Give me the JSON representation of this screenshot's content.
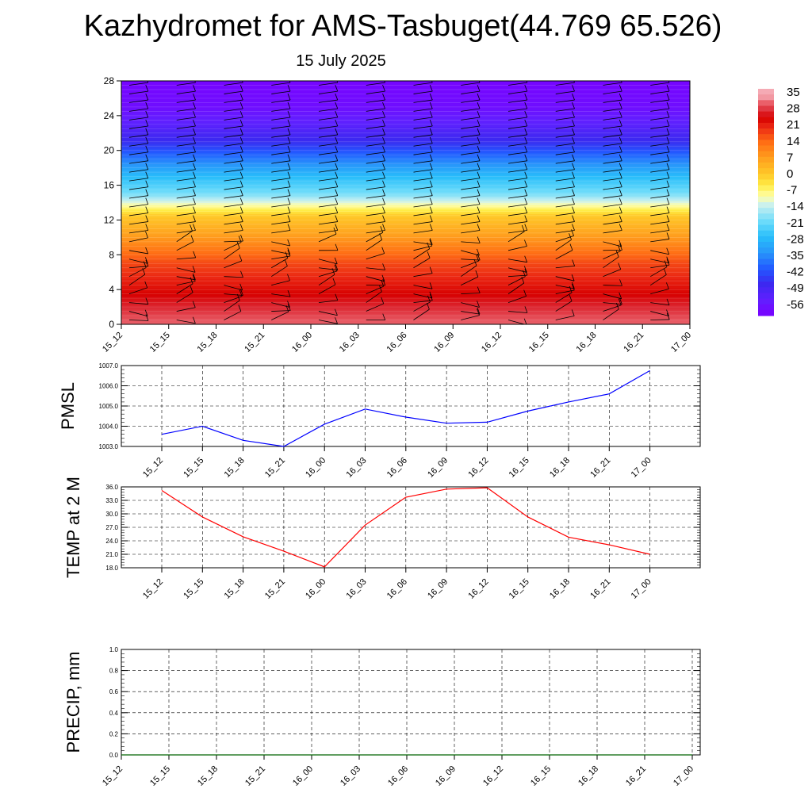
{
  "header": {
    "title": "Kazhydromet for AMS-Tasbuget(44.769 65.526)",
    "date": "15 July 2025"
  },
  "colors": {
    "pmsl_line": "#0000ff",
    "temp_line": "#ff0000",
    "precip_line": "#006400"
  },
  "chart_data": [
    {
      "type": "heatmap",
      "time_labels": [
        "15_12",
        "15_15",
        "15_18",
        "15_21",
        "16_00",
        "16_03",
        "16_06",
        "16_09",
        "16_12",
        "16_15",
        "16_18",
        "16_21",
        "17_00"
      ],
      "y_ticks": [
        0,
        4,
        8,
        12,
        16,
        20,
        24,
        28
      ],
      "ylim": [
        0,
        28
      ],
      "colorbar_labels": [
        "35",
        "28",
        "21",
        "14",
        "7",
        "0",
        "-7",
        "-14",
        "-21",
        "-28",
        "-35",
        "-42",
        "-49",
        "-56"
      ],
      "profile": [
        {
          "level": 0,
          "temp": 32
        },
        {
          "level": 2,
          "temp": 28
        },
        {
          "level": 4,
          "temp": 24
        },
        {
          "level": 7,
          "temp": 18
        },
        {
          "level": 10,
          "temp": 8
        },
        {
          "level": 12.5,
          "temp": 0
        },
        {
          "level": 13.5,
          "temp": -8
        },
        {
          "level": 15,
          "temp": -20
        },
        {
          "level": 17,
          "temp": -28
        },
        {
          "level": 19,
          "temp": -38
        },
        {
          "level": 21,
          "temp": -48
        },
        {
          "level": 23,
          "temp": -55
        },
        {
          "level": 25,
          "temp": -60
        },
        {
          "level": 28,
          "temp": -62
        }
      ],
      "wind_barbs": "black"
    },
    {
      "type": "line",
      "ylabel": "PMSL",
      "x": [
        "15_12",
        "15_15",
        "15_18",
        "15_21",
        "16_00",
        "16_03",
        "16_06",
        "16_09",
        "16_12",
        "16_15",
        "16_18",
        "16_21",
        "17_00"
      ],
      "values": [
        1003.6,
        1004.0,
        1003.3,
        1003.0,
        1004.1,
        1004.85,
        1004.45,
        1004.15,
        1004.2,
        1004.75,
        1005.2,
        1005.6,
        1006.75
      ],
      "ylim": [
        1003.0,
        1007.0
      ],
      "y_ticks": [
        "1003.0",
        "1004.0",
        "1005.0",
        "1006.0",
        "1007.0"
      ],
      "grid": true
    },
    {
      "type": "line",
      "ylabel": "TEMP at 2 M",
      "x": [
        "15_12",
        "15_15",
        "15_18",
        "15_21",
        "16_00",
        "16_03",
        "16_06",
        "16_09",
        "16_12",
        "16_15",
        "16_18",
        "16_21",
        "17_00"
      ],
      "values": [
        35.2,
        29.3,
        24.9,
        21.7,
        18.2,
        27.5,
        33.7,
        35.5,
        35.8,
        29.3,
        24.8,
        23.1,
        21.0
      ],
      "ylim": [
        18.0,
        36.0
      ],
      "y_ticks": [
        "18.0",
        "21.0",
        "24.0",
        "27.0",
        "30.0",
        "33.0",
        "36.0"
      ],
      "grid": true
    },
    {
      "type": "line",
      "ylabel": "PRECIP, mm",
      "x": [
        "15_12",
        "15_15",
        "15_18",
        "15_21",
        "16_00",
        "16_03",
        "16_06",
        "16_09",
        "16_12",
        "16_15",
        "16_18",
        "16_21",
        "17_00"
      ],
      "values": [
        0,
        0,
        0,
        0,
        0,
        0,
        0,
        0,
        0,
        0,
        0,
        0,
        0
      ],
      "ylim": [
        0.0,
        1.0
      ],
      "y_ticks": [
        "0.0",
        "0.2",
        "0.4",
        "0.6",
        "0.8",
        "1.0"
      ],
      "grid": true
    }
  ]
}
